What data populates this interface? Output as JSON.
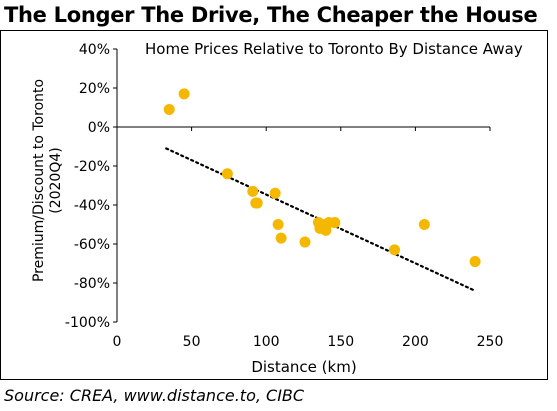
{
  "header": {
    "title": "The Longer The Drive, The Cheaper the House"
  },
  "footer": {
    "source": "Source: CREA, www.distance.to, CIBC"
  },
  "chart_data": {
    "type": "scatter",
    "title": "Home Prices Relative to Toronto By Distance Away",
    "xlabel": "Distance (km)",
    "ylabel": "Premium/Discount to Toronto (2020Q4)",
    "ylabel_lines": [
      "Premium/Discount to Toronto",
      "(2020Q4)"
    ],
    "xlim": [
      0,
      250
    ],
    "ylim": [
      -100,
      40
    ],
    "x_ticks": [
      0,
      50,
      100,
      150,
      200,
      250
    ],
    "y_ticks": [
      40,
      20,
      0,
      -20,
      -40,
      -60,
      -80,
      -100
    ],
    "x_tick_labels": [
      "0",
      "50",
      "100",
      "150",
      "200",
      "250"
    ],
    "y_tick_labels": [
      "40%",
      "20%",
      "0%",
      "-20%",
      "-40%",
      "-60%",
      "-80%",
      "-100%"
    ],
    "grid": false,
    "legend": "none",
    "points": [
      {
        "x": 35,
        "y": 9
      },
      {
        "x": 45,
        "y": 17
      },
      {
        "x": 74,
        "y": -24
      },
      {
        "x": 91,
        "y": -33
      },
      {
        "x": 93,
        "y": -39
      },
      {
        "x": 94,
        "y": -39
      },
      {
        "x": 106,
        "y": -34
      },
      {
        "x": 108,
        "y": -50
      },
      {
        "x": 110,
        "y": -57
      },
      {
        "x": 126,
        "y": -59
      },
      {
        "x": 135,
        "y": -49
      },
      {
        "x": 136,
        "y": -52
      },
      {
        "x": 138,
        "y": -50
      },
      {
        "x": 140,
        "y": -53
      },
      {
        "x": 142,
        "y": -49
      },
      {
        "x": 146,
        "y": -49
      },
      {
        "x": 186,
        "y": -63
      },
      {
        "x": 206,
        "y": -50
      },
      {
        "x": 240,
        "y": -69
      }
    ],
    "trendline": {
      "style": "dotted",
      "x": [
        33,
        240
      ],
      "y": [
        -11,
        -84
      ]
    },
    "colors": {
      "points": "#f5b800",
      "trendline": "#000000",
      "axes": "#000000"
    }
  }
}
